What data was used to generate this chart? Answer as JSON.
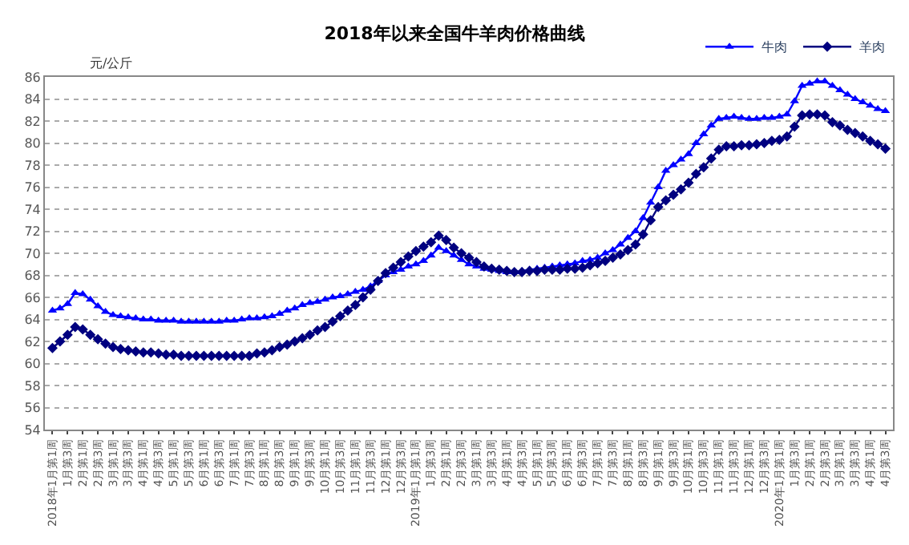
{
  "chart_data": {
    "type": "line",
    "title": "2018年以来全国牛羊肉价格曲线",
    "ylabel": "元/公斤",
    "categories": [
      "2018年1月第1周",
      null,
      "1月第3周",
      null,
      "2月第1周",
      null,
      "2月第3周",
      null,
      "3月第1周",
      null,
      "3月第3周",
      null,
      "4月第1周",
      null,
      "4月第3周",
      null,
      "5月第1周",
      null,
      "5月第3周",
      null,
      "6月第1周",
      null,
      "6月第3周",
      null,
      "7月第1周",
      null,
      "7月第3周",
      null,
      "8月第1周",
      null,
      "8月第3周",
      null,
      "9月第1周",
      null,
      "9月第3周",
      null,
      "10月第1周",
      null,
      "10月第3周",
      null,
      "11月第1周",
      null,
      "11月第3周",
      null,
      "12月第1周",
      null,
      "12月第3周",
      null,
      "2019年1月第1周",
      null,
      "1月第3周",
      null,
      "2月第1周",
      null,
      "2月第3周",
      null,
      "3月第1周",
      null,
      "3月第3周",
      null,
      "4月第1周",
      null,
      "4月第3周",
      null,
      "5月第1周",
      null,
      "5月第3周",
      null,
      "6月第1周",
      null,
      "6月第3周",
      null,
      "7月第1周",
      null,
      "7月第3周",
      null,
      "8月第1周",
      null,
      "8月第3周",
      null,
      "9月第1周",
      null,
      "9月第3周",
      null,
      "10月第1周",
      null,
      "10月第3周",
      null,
      "11月第1周",
      null,
      "11月第3周",
      null,
      "12月第1周",
      null,
      "12月第3周",
      null,
      "2020年1月第1周",
      null,
      "1月第3周",
      null,
      "2月第1周",
      null,
      "2月第3周",
      null,
      "3月第1周",
      null,
      "3月第3周",
      null,
      "4月第1周",
      null,
      "4月第3周"
    ],
    "series": [
      {
        "name": "牛肉",
        "color": "#0000ff",
        "marker": "triangle",
        "values": [
          64.8,
          65.0,
          65.4,
          66.4,
          66.3,
          65.8,
          65.2,
          64.7,
          64.4,
          64.3,
          64.2,
          64.1,
          64.0,
          64.0,
          63.9,
          63.9,
          63.9,
          63.8,
          63.8,
          63.8,
          63.8,
          63.8,
          63.8,
          63.9,
          63.9,
          64.0,
          64.1,
          64.1,
          64.2,
          64.3,
          64.5,
          64.8,
          65.0,
          65.3,
          65.5,
          65.6,
          65.8,
          66.0,
          66.1,
          66.3,
          66.5,
          66.7,
          67.0,
          67.5,
          68.0,
          68.3,
          68.5,
          68.8,
          69.0,
          69.3,
          69.8,
          70.5,
          70.2,
          69.8,
          69.4,
          69.0,
          68.8,
          68.6,
          68.5,
          68.4,
          68.3,
          68.3,
          68.4,
          68.5,
          68.6,
          68.7,
          68.8,
          68.9,
          69.0,
          69.1,
          69.3,
          69.4,
          69.6,
          70.0,
          70.3,
          70.8,
          71.4,
          72.0,
          73.2,
          74.6,
          76.0,
          77.5,
          78.0,
          78.5,
          79.0,
          80.0,
          80.8,
          81.6,
          82.2,
          82.3,
          82.4,
          82.3,
          82.2,
          82.2,
          82.3,
          82.3,
          82.4,
          82.6,
          83.8,
          85.2,
          85.4,
          85.6,
          85.6,
          85.2,
          84.8,
          84.4,
          84.0,
          83.7,
          83.4,
          83.1,
          82.9
        ]
      },
      {
        "name": "羊肉",
        "color": "#000080",
        "marker": "diamond",
        "values": [
          61.4,
          62.0,
          62.6,
          63.3,
          63.1,
          62.6,
          62.2,
          61.8,
          61.5,
          61.3,
          61.2,
          61.1,
          61.0,
          61.0,
          60.9,
          60.8,
          60.8,
          60.7,
          60.7,
          60.7,
          60.7,
          60.7,
          60.7,
          60.7,
          60.7,
          60.7,
          60.7,
          60.9,
          61.0,
          61.2,
          61.5,
          61.7,
          62.0,
          62.3,
          62.6,
          63.0,
          63.3,
          63.8,
          64.3,
          64.8,
          65.3,
          66.0,
          66.7,
          67.5,
          68.2,
          68.7,
          69.2,
          69.7,
          70.2,
          70.6,
          71.0,
          71.6,
          71.2,
          70.5,
          70.0,
          69.6,
          69.2,
          68.8,
          68.6,
          68.5,
          68.4,
          68.3,
          68.3,
          68.4,
          68.4,
          68.5,
          68.5,
          68.5,
          68.6,
          68.6,
          68.7,
          68.9,
          69.1,
          69.3,
          69.6,
          69.9,
          70.3,
          70.8,
          71.7,
          73.0,
          74.2,
          74.8,
          75.3,
          75.8,
          76.4,
          77.2,
          77.8,
          78.6,
          79.4,
          79.7,
          79.7,
          79.8,
          79.8,
          79.9,
          80.0,
          80.2,
          80.3,
          80.6,
          81.5,
          82.5,
          82.6,
          82.6,
          82.5,
          81.9,
          81.6,
          81.2,
          80.9,
          80.6,
          80.2,
          79.9,
          79.5
        ]
      }
    ],
    "ylim": [
      54,
      86
    ],
    "yticks": [
      54,
      56,
      58,
      60,
      62,
      64,
      66,
      68,
      70,
      72,
      74,
      76,
      78,
      80,
      82,
      84,
      86
    ],
    "grid": "y",
    "legend": "top right"
  }
}
